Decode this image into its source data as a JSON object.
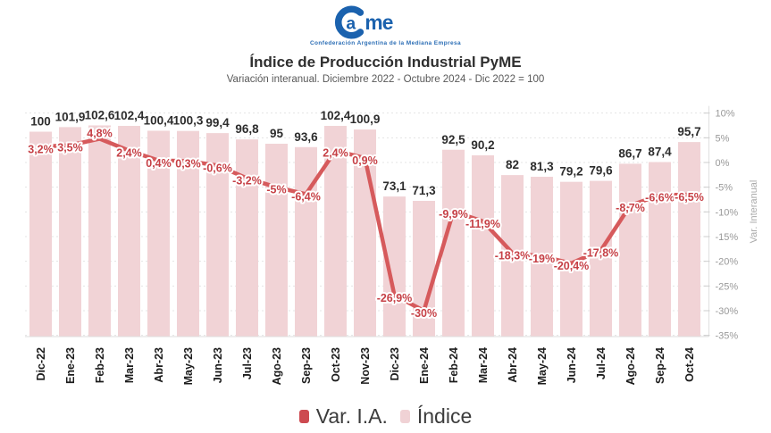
{
  "header": {
    "logo_text": "Came",
    "logo_subtitle": "Confederación Argentina de la Mediana Empresa",
    "title": "Índice de Producción Industrial PyME",
    "subtitle": "Variación interanual. Diciembre 2022 - Octubre 2024 - Dic 2022 = 100"
  },
  "legend": {
    "var_label": "Var. I.A.",
    "indice_label": "Índice"
  },
  "colors": {
    "bar": "#f1d3d6",
    "line": "#d65a5c",
    "line_label_text": "#c64046",
    "bar_label_text": "#2d2d2d",
    "axis_text": "#999999",
    "legend_var_marker": "#cd4a50",
    "legend_indice_marker": "#f0d2d5",
    "logo_blue": "#1b62ae"
  },
  "chart_data": {
    "type": "bar",
    "title": "Índice de Producción Industrial PyME",
    "subtitle": "Variación interanual. Diciembre 2022 - Octubre 2024 - Dic 2022 = 100",
    "categories": [
      "Dic-22",
      "Ene-23",
      "Feb-23",
      "Mar-23",
      "Abr-23",
      "May-23",
      "Jun-23",
      "Jul-23",
      "Ago-23",
      "Sep-23",
      "Oct-23",
      "Nov-23",
      "Dic-23",
      "Ene-24",
      "Feb-24",
      "Mar-24",
      "Abr-24",
      "May-24",
      "Jun-24",
      "Jul-24",
      "Ago-24",
      "Sep-24",
      "Oct-24"
    ],
    "series": [
      {
        "name": "Índice",
        "type": "bar",
        "values": [
          100,
          101.9,
          102.6,
          102.4,
          100.4,
          100.3,
          99.4,
          96.8,
          95,
          93.6,
          102.4,
          100.9,
          73.1,
          71.3,
          92.5,
          90.2,
          82,
          81.3,
          79.2,
          79.6,
          86.7,
          87.4,
          95.7
        ],
        "labels": [
          "100",
          "101,9",
          "102,6",
          "102,4",
          "100,4",
          "100,3",
          "99,4",
          "96,8",
          "95",
          "93,6",
          "102,4",
          "100,9",
          "73,1",
          "71,3",
          "92,5",
          "90,2",
          "82",
          "81,3",
          "79,2",
          "79,6",
          "86,7",
          "87,4",
          "95,7"
        ]
      },
      {
        "name": "Var. I.A.",
        "type": "line",
        "values": [
          3.2,
          3.5,
          4.8,
          2.4,
          0.4,
          0.3,
          -0.6,
          -3.2,
          -5,
          -6.4,
          2.4,
          0.9,
          -26.9,
          -30,
          -9.9,
          -11.9,
          -18.3,
          -19,
          -20.4,
          -17.8,
          -8.7,
          -6.6,
          -6.5
        ],
        "labels": [
          "3,2%",
          "3,5%",
          "4,8%",
          "2,4%",
          "0,4%",
          "0,3%",
          "-0,6%",
          "-3,2%",
          "-5%",
          "-6,4%",
          "2,4%",
          "0,9%",
          "-26,9%",
          "-30%",
          "-9,9%",
          "-11,9%",
          "-18,3%",
          "-19%",
          "-20,4%",
          "-17,8%",
          "-8,7%",
          "-6,6%",
          "-6,5%"
        ]
      }
    ],
    "right_axis": {
      "label": "Var. Interanual",
      "ticks": [
        "10%",
        "5%",
        "0%",
        "-5%",
        "-10%",
        "-15%",
        "-20%",
        "-25%",
        "-30%",
        "-35%"
      ],
      "tick_values": [
        10,
        5,
        0,
        -5,
        -10,
        -15,
        -20,
        -25,
        -30,
        -35
      ],
      "min": -35,
      "max": 10
    },
    "legend_entries": [
      "Var. I.A.",
      "Índice"
    ],
    "grid": "dotted-horizontal",
    "legend_position": "bottom"
  }
}
